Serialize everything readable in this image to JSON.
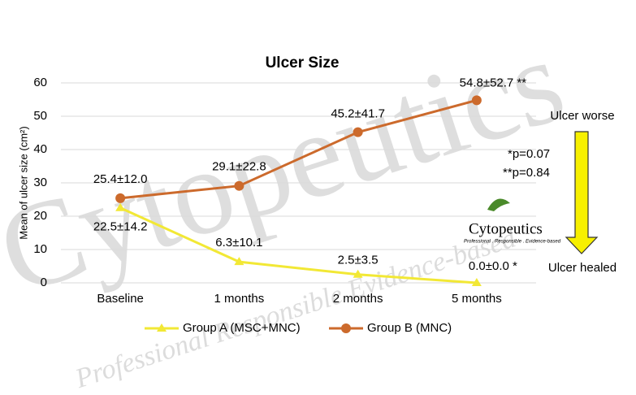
{
  "chart_data": {
    "type": "line",
    "title": "Ulcer Size",
    "y_label": "Mean of  ulcer size (cm²)",
    "categories": [
      "Baseline",
      "1 months",
      "2 months",
      "5 months"
    ],
    "series": [
      {
        "name": "Group A (MSC+MNC)",
        "color": "#f2e835",
        "marker": "triangle",
        "values": [
          22.5,
          6.3,
          2.5,
          0.0
        ],
        "value_labels": [
          "22.5±14.2",
          "6.3±10.1",
          "2.5±3.5",
          "0.0±0.0 *"
        ]
      },
      {
        "name": "Group B (MNC)",
        "color": "#cc6a2c",
        "marker": "circle",
        "values": [
          25.4,
          29.1,
          45.2,
          54.8
        ],
        "value_labels": [
          "25.4±12.0",
          "29.1±22.8",
          "45.2±41.7",
          "54.8±52.7 **"
        ]
      }
    ],
    "ylim": [
      0,
      60
    ],
    "yticks": [
      0,
      10,
      20,
      30,
      40,
      50,
      60
    ],
    "grid": true,
    "legend": "bottom",
    "annotations": [
      "Ulcer worse",
      "Ulcer healed",
      "*p=0.07",
      "**p=0.84"
    ],
    "watermark": {
      "brand": "Cytopeutics",
      "tagline": "Professional Responsible Evidence-based"
    },
    "logo": {
      "brand": "Cytopeutics",
      "tagline": "Professional . Responsible . Evidence-based"
    }
  }
}
